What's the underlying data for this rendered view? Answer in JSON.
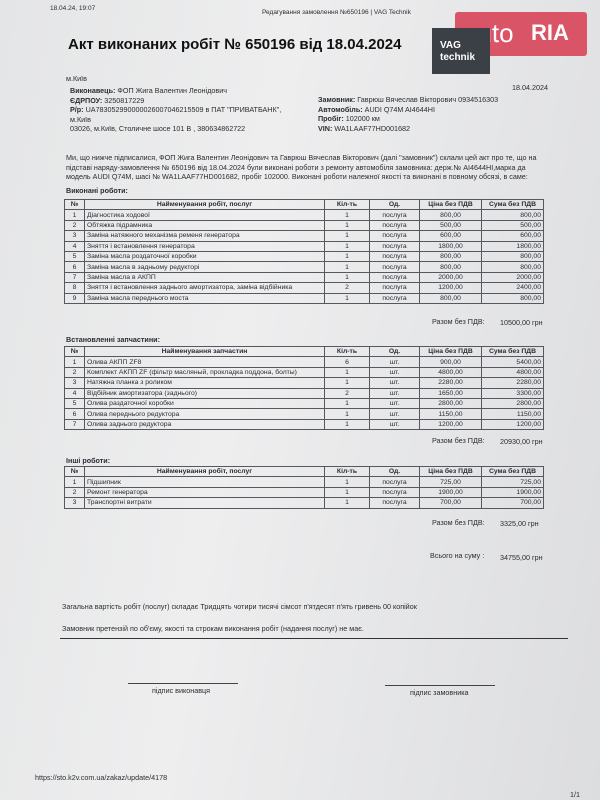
{
  "browser_header": {
    "datetime": "18.04.24, 19:07",
    "page_title": "Редагування замовлення №650196 | VAG Technik"
  },
  "watermark": {
    "brand": "auto",
    "brand_suffix": "RIA"
  },
  "logo": {
    "line1": "VAG",
    "line2": "technik"
  },
  "document": {
    "title": "Акт виконаних робіт № 650196 від 18.04.2024",
    "city": "м.Київ",
    "date": "18.04.2024",
    "executor": [
      {
        "label": "Виконавець:",
        "value": "ФОП Жига Валентин Леонідович"
      },
      {
        "label": "ЄДРПОУ:",
        "value": "3250817229"
      },
      {
        "label": "Р/р:",
        "value": "UA783052990000026007046215509 в ПАТ \"ПРИВАТБАНК\","
      },
      {
        "value": "м.Київ"
      },
      {
        "value": "03026, м.Київ, Столичне шосе 101 В , 380634862722"
      }
    ],
    "customer": [
      {
        "label": "Замовник:",
        "value": "Гаврюш Вячеслав Вікторович 0934516303"
      },
      {
        "label": "Автомобіль:",
        "value": "AUDI Q74M AI4644HI"
      },
      {
        "label": "Пробіг:",
        "value": "102000 км"
      },
      {
        "label": "VIN:",
        "value": "WA1LAAF77HD001682"
      }
    ],
    "intro": "Ми, що нижче підписалися, ФОП Жига Валентин Леонідович та Гаврюш Вячеслав Вікторович (далі \"замовник\") склали цей акт про те, що на підставі наряду-замовлення № 650196 від 18.04.2024 були виконані роботи з ремонту автомобіля замовника: держ.№ AI4644HI,марка да модель AUDI Q74M, шасі № WA1LAAF77HD001682, пробіг 102000. Виконані роботи належної якості та виконані в повному обсязі, в саме:",
    "sections": [
      {
        "heading": "Виконані роботи:",
        "columns": [
          "№",
          "Найменування робіт, послуг",
          "Кіл-ть",
          "Од.",
          "Ціна без ПДВ",
          "Сума без ПДВ"
        ],
        "rows": [
          [
            "1",
            "Діагностика ходової",
            "1",
            "послуга",
            "800,00",
            "800,00"
          ],
          [
            "2",
            "Обтяжка підрамника",
            "1",
            "послуга",
            "500,00",
            "500,00"
          ],
          [
            "3",
            "Заміна натяжного механізма ременя генератора",
            "1",
            "послуга",
            "600,00",
            "600,00"
          ],
          [
            "4",
            "Зняття і встановлення генератора",
            "1",
            "послуга",
            "1800,00",
            "1800,00"
          ],
          [
            "5",
            "Заміна масла роздаточної коробки",
            "1",
            "послуга",
            "800,00",
            "800,00"
          ],
          [
            "6",
            "Заміна масла в задньому редукторі",
            "1",
            "послуга",
            "800,00",
            "800,00"
          ],
          [
            "7",
            "Заміна масла в АКПП",
            "1",
            "послуга",
            "2000,00",
            "2000,00"
          ],
          [
            "8",
            "Зняття і встановлення заднього амортизатора, заміна відбійника",
            "2",
            "послуга",
            "1200,00",
            "2400,00"
          ],
          [
            "9",
            "Заміна масла переднього моста",
            "1",
            "послуга",
            "800,00",
            "800,00"
          ]
        ],
        "total_label": "Разом без ПДВ:",
        "total_value": "10500,00 грн"
      },
      {
        "heading": "Встановленні запчастини:",
        "columns": [
          "№",
          "Найменування запчастин",
          "Кіл-ть",
          "Од.",
          "Ціна без ПДВ",
          "Сума без ПДВ"
        ],
        "rows": [
          [
            "1",
            "Олива АКПП ZF8",
            "6",
            "шт.",
            "900,00",
            "5400,00"
          ],
          [
            "2",
            "Комплект АКПП ZF (фільтр масляный, прокладка поддона, болты)",
            "1",
            "шт.",
            "4800,00",
            "4800,00"
          ],
          [
            "3",
            "Натяжна планка з роликом",
            "1",
            "шт.",
            "2280,00",
            "2280,00"
          ],
          [
            "4",
            "Відбійник амортизатора (заднього)",
            "2",
            "шт.",
            "1650,00",
            "3300,00"
          ],
          [
            "5",
            "Олива раздаточної коробки",
            "1",
            "шт.",
            "2800,00",
            "2800,00"
          ],
          [
            "6",
            "Олива переднього редуктора",
            "1",
            "шт.",
            "1150,00",
            "1150,00"
          ],
          [
            "7",
            "Олива заднього редуктора",
            "1",
            "шт.",
            "1200,00",
            "1200,00"
          ]
        ],
        "total_label": "Разом без ПДВ:",
        "total_value": "20930,00 грн"
      },
      {
        "heading": "Інші роботи:",
        "columns": [
          "№",
          "Найменування робіт, послуг",
          "Кіл-ть",
          "Од.",
          "Ціна без ПДВ",
          "Сума без ПДВ"
        ],
        "rows": [
          [
            "1",
            "Підшипник",
            "1",
            "послуга",
            "725,00",
            "725,00"
          ],
          [
            "2",
            "Ремонт генератора",
            "1",
            "послуга",
            "1900,00",
            "1900,00"
          ],
          [
            "3",
            "Транспортні витрати",
            "1",
            "послуга",
            "700,00",
            "700,00"
          ]
        ],
        "total_label": "Разом без ПДВ:",
        "total_value": "3325,00 грн"
      }
    ],
    "grand_total_label": "Всього на суму :",
    "grand_total_value": "34755,00 грн",
    "amount_words": "Загальна вартість робіт (послуг) складає Тридцять чотири тисячі сімсот п'ятдесят п'ять гривень 00 копійок",
    "no_claims": "Замовник претензій по об'єму, якості та строкам виконання робіт (надання послуг) не має.",
    "signature_executor": "підпис виконавця",
    "signature_customer": "підпис замовника"
  },
  "footer": {
    "url": "https://sto.k2v.com.ua/zakaz/update/4178",
    "page": "1/1"
  }
}
